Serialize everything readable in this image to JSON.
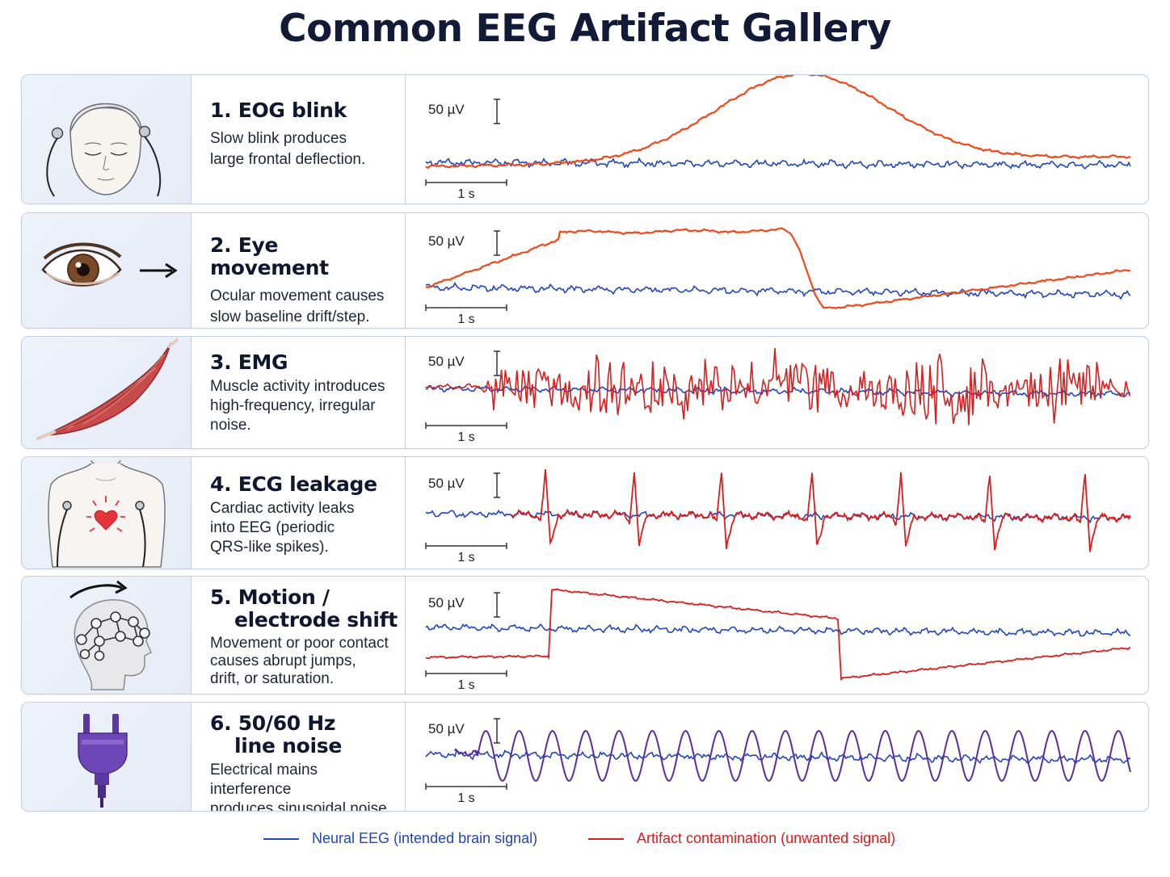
{
  "title": "Common EEG Artifact Gallery",
  "scale": {
    "amplitude": "50 µV",
    "time": "1 s"
  },
  "colors": {
    "neural": "#2347b8",
    "artifact_orange": "#f0481a",
    "artifact_red": "#d81e1e",
    "artifact_purple": "#5b2d9e"
  },
  "artifacts": [
    {
      "id": "eog-blink",
      "title": "1. EOG blink",
      "description": "Slow blink produces large frontal deflection.",
      "desc_lines": [
        "Slow blink produces",
        "large frontal deflection."
      ],
      "icon": "face-with-electrodes-icon",
      "artifact_color": "#f0481a"
    },
    {
      "id": "eye-movement",
      "title": "2. Eye movement",
      "description": "Ocular movement causes slow baseline drift/step.",
      "desc_lines": [
        "Ocular movement causes",
        "slow baseline drift/step."
      ],
      "icon": "eye-with-arrow-icon",
      "artifact_color": "#f0481a"
    },
    {
      "id": "emg",
      "title": "3. EMG",
      "description": "Muscle activity introduces high-frequency, irregular noise.",
      "desc_lines": [
        "Muscle activity introduces",
        "high-frequency, irregular",
        "noise."
      ],
      "icon": "muscle-icon",
      "artifact_color": "#d81e1e"
    },
    {
      "id": "ecg-leakage",
      "title": "4. ECG leakage",
      "description": "Cardiac activity leaks into EEG (periodic QRS-like spikes).",
      "desc_lines": [
        "Cardiac activity leaks",
        "into EEG (periodic",
        "QRS-like spikes)."
      ],
      "icon": "chest-with-heart-icon",
      "artifact_color": "#d81e1e"
    },
    {
      "id": "motion",
      "title_lines": [
        "5. Motion /",
        "electrode shift"
      ],
      "description": "Movement or poor contact causes abrupt jumps, drift, or saturation.",
      "desc_lines": [
        "Movement or poor contact",
        "causes abrupt jumps,",
        "drift, or saturation."
      ],
      "icon": "head-with-electrode-cap-icon",
      "artifact_color": "#d81e1e"
    },
    {
      "id": "line-noise",
      "title_lines": [
        "6. 50/60 Hz",
        "line noise"
      ],
      "description": "Electrical mains interference produces sinusoidal noise.",
      "desc_lines": [
        "Electrical mains interference",
        "produces sinusoidal noise."
      ],
      "icon": "power-plug-icon",
      "artifact_color": "#5b2d9e"
    }
  ],
  "legend": {
    "neural": "Neural EEG (intended brain signal)",
    "artifact": "Artifact contamination (unwanted signal)"
  }
}
